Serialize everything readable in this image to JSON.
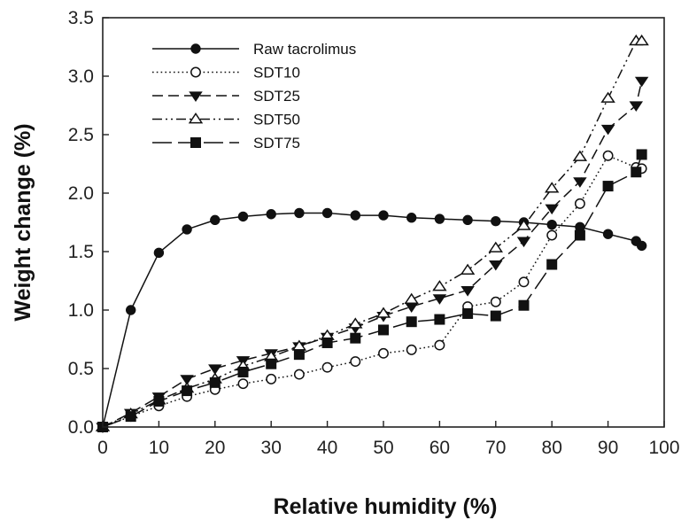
{
  "chart_data": {
    "type": "line",
    "title": "",
    "xlabel": "Relative humidity (%)",
    "ylabel": "Weight change (%)",
    "xlim": [
      0,
      100
    ],
    "ylim": [
      0,
      3.5
    ],
    "xticks": [
      0,
      10,
      20,
      30,
      40,
      50,
      60,
      70,
      80,
      90,
      100
    ],
    "yticks": [
      0.0,
      0.5,
      1.0,
      1.5,
      2.0,
      2.5,
      3.0,
      3.5
    ],
    "xtick_labels": [
      "0",
      "10",
      "20",
      "30",
      "40",
      "50",
      "60",
      "70",
      "80",
      "90",
      "100"
    ],
    "ytick_labels": [
      "0.0",
      "0.5",
      "1.0",
      "1.5",
      "2.0",
      "2.5",
      "3.0",
      "3.5"
    ],
    "grid": false,
    "legend_position": "top-left",
    "series": [
      {
        "name": "Raw tacrolimus",
        "marker": "filled-circle",
        "dash": "solid",
        "x": [
          0,
          5,
          10,
          15,
          20,
          25,
          30,
          35,
          40,
          45,
          50,
          55,
          60,
          65,
          70,
          75,
          80,
          85,
          90,
          95,
          96
        ],
        "y": [
          0.0,
          1.0,
          1.49,
          1.69,
          1.77,
          1.8,
          1.82,
          1.83,
          1.83,
          1.81,
          1.81,
          1.79,
          1.78,
          1.77,
          1.76,
          1.75,
          1.73,
          1.71,
          1.65,
          1.59,
          1.55
        ]
      },
      {
        "name": "SDT10",
        "marker": "open-circle",
        "dash": "dotted",
        "x": [
          0,
          5,
          10,
          15,
          20,
          25,
          30,
          35,
          40,
          45,
          50,
          55,
          60,
          65,
          70,
          75,
          80,
          85,
          90,
          95,
          96
        ],
        "y": [
          0.0,
          0.09,
          0.18,
          0.26,
          0.32,
          0.37,
          0.41,
          0.45,
          0.51,
          0.56,
          0.63,
          0.66,
          0.7,
          1.03,
          1.07,
          1.24,
          1.64,
          1.91,
          2.32,
          2.22,
          2.21
        ]
      },
      {
        "name": "SDT25",
        "marker": "filled-triangle-down",
        "dash": "dashed",
        "x": [
          0,
          5,
          10,
          15,
          20,
          25,
          30,
          35,
          40,
          45,
          50,
          55,
          60,
          65,
          70,
          75,
          80,
          85,
          90,
          95,
          96
        ],
        "y": [
          0.0,
          0.12,
          0.26,
          0.41,
          0.5,
          0.57,
          0.63,
          0.69,
          0.77,
          0.85,
          0.95,
          1.03,
          1.1,
          1.17,
          1.39,
          1.59,
          1.87,
          2.1,
          2.55,
          2.75,
          2.96
        ]
      },
      {
        "name": "SDT50",
        "marker": "open-triangle-up",
        "dash": "dash-dot-dot",
        "x": [
          0,
          5,
          10,
          15,
          20,
          25,
          30,
          35,
          40,
          45,
          50,
          55,
          60,
          65,
          70,
          75,
          80,
          85,
          90,
          95,
          96
        ],
        "y": [
          0.0,
          0.11,
          0.23,
          0.33,
          0.41,
          0.52,
          0.6,
          0.69,
          0.78,
          0.88,
          0.97,
          1.09,
          1.2,
          1.34,
          1.53,
          1.72,
          2.04,
          2.31,
          2.81,
          3.3,
          3.3
        ]
      },
      {
        "name": "SDT75",
        "marker": "filled-square",
        "dash": "long-dash",
        "x": [
          0,
          5,
          10,
          15,
          20,
          25,
          30,
          35,
          40,
          45,
          50,
          55,
          60,
          65,
          70,
          75,
          80,
          85,
          90,
          95,
          96
        ],
        "y": [
          0.0,
          0.09,
          0.22,
          0.31,
          0.38,
          0.47,
          0.54,
          0.62,
          0.72,
          0.76,
          0.83,
          0.9,
          0.92,
          0.97,
          0.95,
          1.04,
          1.39,
          1.64,
          2.06,
          2.18,
          2.33
        ]
      }
    ]
  }
}
